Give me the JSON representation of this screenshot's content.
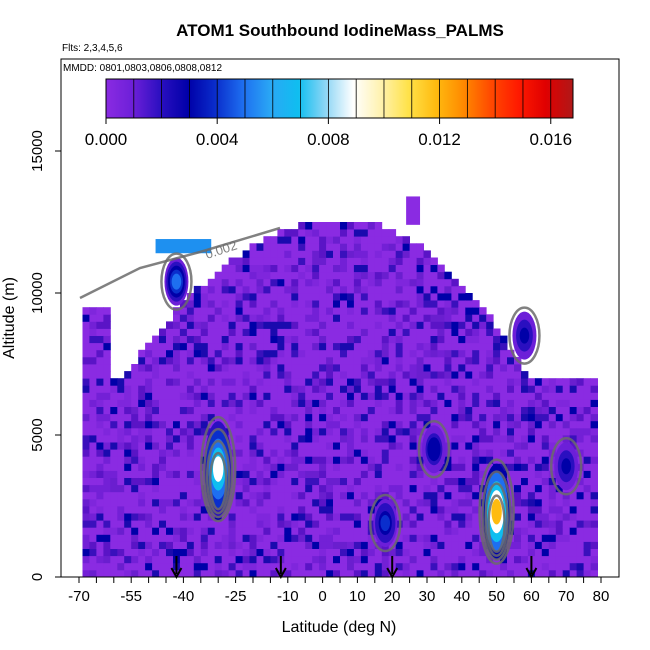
{
  "chart_data": {
    "type": "heatmap",
    "title": "ATOM1 Southbound IodineMass_PALMS",
    "flights_label": "Flts: 2,3,4,5,6",
    "dates_label": "MMDD: 0801,0803,0806,0808,0812",
    "xlabel": "Latitude (deg N)",
    "ylabel": "Altitude (m)",
    "xlim": [
      -70,
      80
    ],
    "ylim": [
      0,
      17500
    ],
    "x_tick_labels": [
      "-70",
      "-55",
      "-40",
      "-25",
      "-10",
      "0",
      "10",
      "20",
      "30",
      "40",
      "50",
      "60",
      "70",
      "80"
    ],
    "y_tick_labels": [
      "0",
      "5000",
      "10000",
      "15000"
    ],
    "colorbar": {
      "range": [
        0,
        0.0168
      ],
      "tick_labels": [
        "0.000",
        "0.004",
        "0.008",
        "0.012",
        "0.016"
      ],
      "colors": [
        "#8a2be2",
        "#6c1fd8",
        "#2a0fc0",
        "#0000a8",
        "#0a2ecc",
        "#1e6ff0",
        "#2aa8f5",
        "#0fbef0",
        "#8fd6f5",
        "#ffffff",
        "#fff2b0",
        "#ffe24a",
        "#ffbb10",
        "#ff8a00",
        "#ff4a00",
        "#ff1a00",
        "#e00000",
        "#b01818"
      ]
    },
    "contour_label": "0.002",
    "arrow_latitudes": [
      -42,
      -12,
      20,
      60
    ],
    "hotspots": [
      {
        "lat": -30,
        "alt": 3800,
        "value": 0.0085
      },
      {
        "lat": 50,
        "alt": 2300,
        "value": 0.0115
      },
      {
        "lat": -42,
        "alt": 10400,
        "value": 0.005
      },
      {
        "lat": 18,
        "alt": 1900,
        "value": 0.0035
      },
      {
        "lat": 32,
        "alt": 4500,
        "value": 0.0032
      },
      {
        "lat": 58,
        "alt": 8500,
        "value": 0.003
      },
      {
        "lat": 70,
        "alt": 3900,
        "value": 0.003
      }
    ]
  }
}
